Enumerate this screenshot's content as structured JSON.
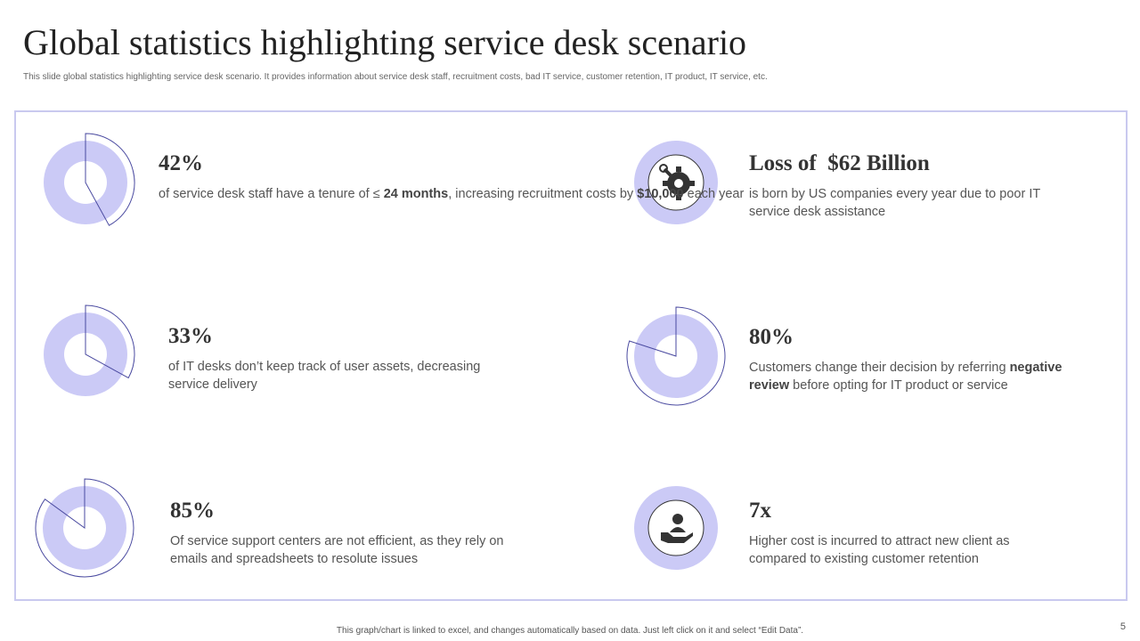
{
  "title": "Global statistics highlighting service desk scenario",
  "subtitle": "This slide global statistics highlighting service desk scenario. It provides information about service desk staff, recruitment costs, bad IT service, customer retention, IT product, IT service, etc.",
  "colors": {
    "ring": "#cbcaf6",
    "wedge": "#4a4aa0",
    "frame": "#c9c9ef"
  },
  "stats": [
    {
      "value": "42%",
      "percent": 42,
      "pre": "of service desk staff have a tenure of ≤ ",
      "b1": "24 months",
      "mid": ", increasing recruitment costs by ",
      "b2": "$10,000",
      "post": " each year"
    },
    {
      "value": "33%",
      "percent": 33,
      "text": "of IT desks don’t keep track of user assets, decreasing service delivery"
    },
    {
      "value": "85%",
      "percent": 85,
      "text": "Of service support centers are not efficient, as they rely on emails and spreadsheets to resolute issues"
    },
    {
      "value": "Loss of  $62 Billion",
      "icon": "gear-wrench-hand-icon",
      "text": "is born by US companies every year due to poor IT service desk assistance"
    },
    {
      "value": "80%",
      "percent": 80,
      "pre": "Customers change their decision by referring ",
      "b1": "negative review",
      "post": " before opting for IT product or service"
    },
    {
      "value": "7x",
      "icon": "hand-user-icon",
      "text": "Higher cost is incurred to attract new client as compared to existing customer retention"
    }
  ],
  "footer": "This graph/chart is linked to excel,  and changes automatically based on data. Just left click on it and select “Edit Data”.",
  "page_number": "5"
}
